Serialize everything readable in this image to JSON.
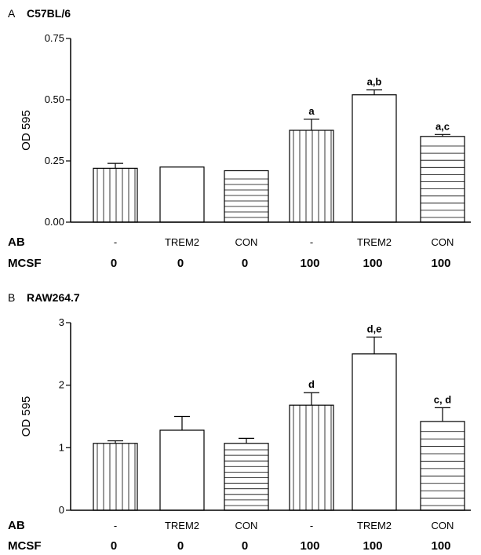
{
  "chart_data": [
    {
      "type": "bar",
      "panel": "A",
      "title": "C57BL/6",
      "ylabel": "OD 595",
      "ylim": [
        0,
        0.75
      ],
      "yticks": [
        "0.00",
        "0.25",
        "0.50",
        "0.75"
      ],
      "ytick_values": [
        0,
        0.25,
        0.5,
        0.75
      ],
      "row_labels": [
        "AB",
        "MCSF"
      ],
      "categories_ab": [
        "-",
        "TREM2",
        "CON",
        "-",
        "TREM2",
        "CON"
      ],
      "categories_mcsf": [
        "0",
        "0",
        "0",
        "100",
        "100",
        "100"
      ],
      "values": [
        0.22,
        0.225,
        0.21,
        0.375,
        0.52,
        0.35
      ],
      "errors": [
        0.02,
        0.0,
        0.0,
        0.045,
        0.02,
        0.008
      ],
      "annotations": [
        "",
        "",
        "",
        "a",
        "a,b",
        "a,c"
      ],
      "patterns": [
        "vlines",
        "none",
        "hlines",
        "vlines",
        "none",
        "hlines"
      ]
    },
    {
      "type": "bar",
      "panel": "B",
      "title": "RAW264.7",
      "ylabel": "OD 595",
      "ylim": [
        0,
        3
      ],
      "yticks": [
        "0",
        "1",
        "2",
        "3"
      ],
      "ytick_values": [
        0,
        1,
        2,
        3
      ],
      "row_labels": [
        "AB",
        "MCSF"
      ],
      "categories_ab": [
        "-",
        "TREM2",
        "CON",
        "-",
        "TREM2",
        "CON"
      ],
      "categories_mcsf": [
        "0",
        "0",
        "0",
        "100",
        "100",
        "100"
      ],
      "values": [
        1.07,
        1.28,
        1.07,
        1.68,
        2.5,
        1.42
      ],
      "errors": [
        0.04,
        0.22,
        0.08,
        0.2,
        0.27,
        0.22
      ],
      "annotations": [
        "",
        "",
        "",
        "d",
        "d,e",
        "c, d"
      ],
      "patterns": [
        "vlines",
        "none",
        "hlines",
        "vlines",
        "none",
        "hlines"
      ]
    }
  ]
}
